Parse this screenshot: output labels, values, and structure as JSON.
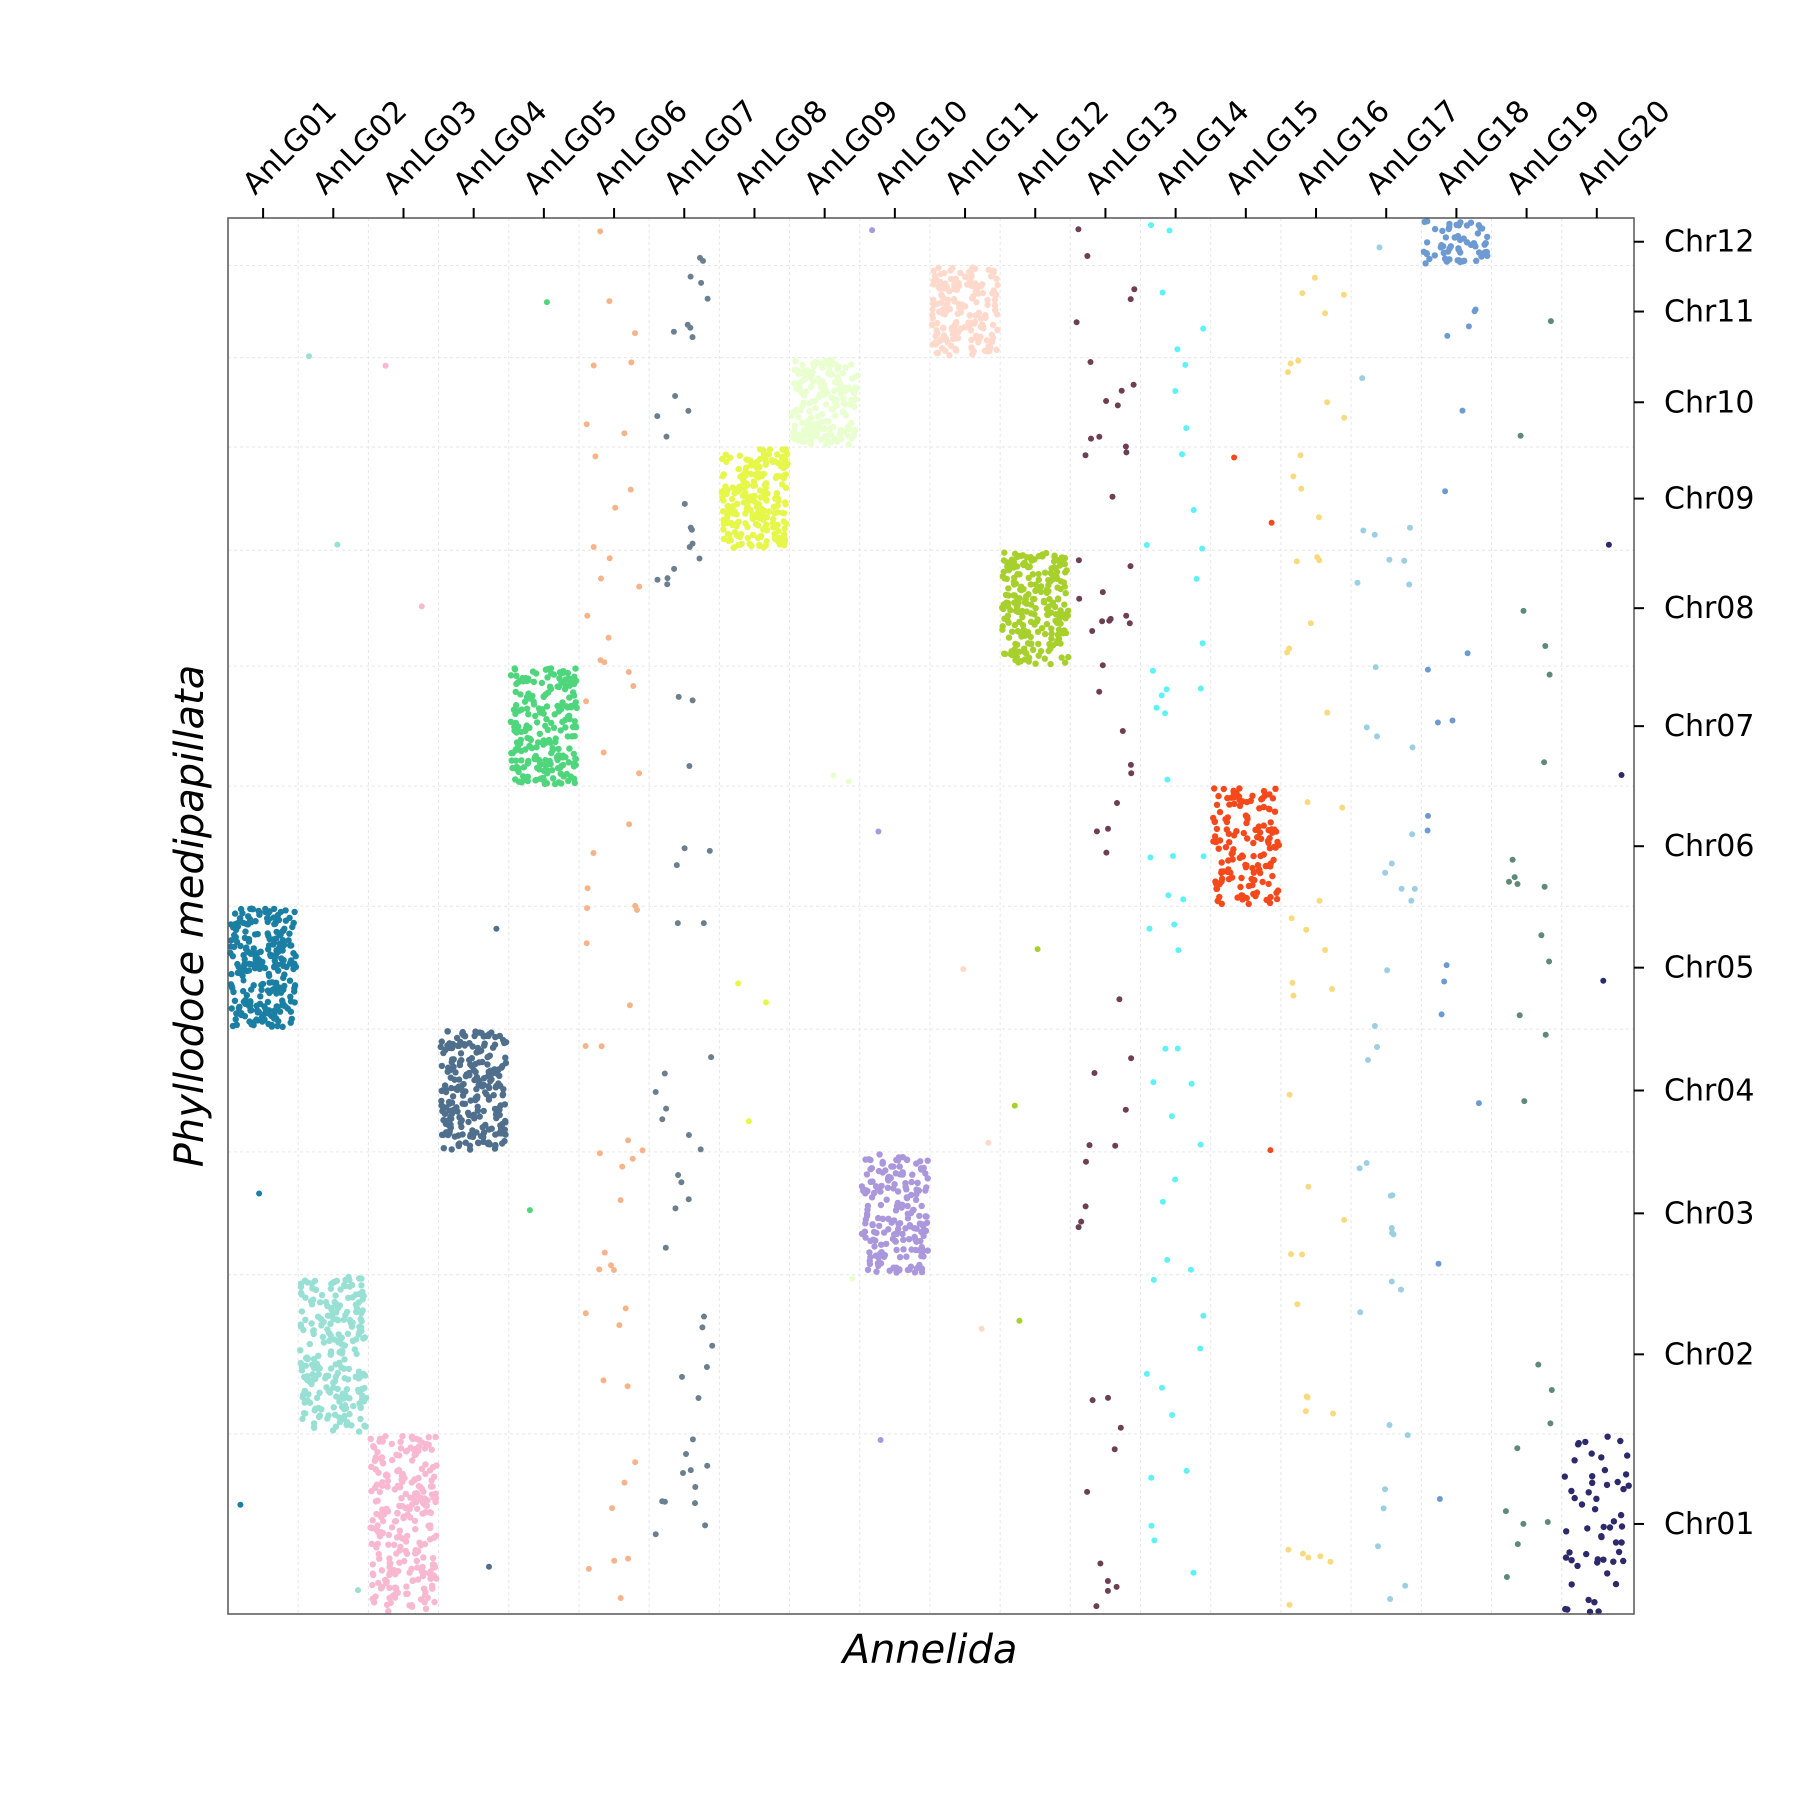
{
  "chart_data": {
    "type": "scatter",
    "title": "",
    "xlabel": "Annelida",
    "ylabel": "Phyllodoce medipapillata",
    "x_categories": [
      "AnLG01",
      "AnLG02",
      "AnLG03",
      "AnLG04",
      "AnLG05",
      "AnLG06",
      "AnLG07",
      "AnLG08",
      "AnLG09",
      "AnLG10",
      "AnLG11",
      "AnLG12",
      "AnLG13",
      "AnLG14",
      "AnLG15",
      "AnLG16",
      "AnLG17",
      "AnLG18",
      "AnLG19",
      "AnLG20"
    ],
    "y_categories": [
      "Chr01",
      "Chr02",
      "Chr03",
      "Chr04",
      "Chr05",
      "Chr06",
      "Chr07",
      "Chr08",
      "Chr09",
      "Chr10",
      "Chr11",
      "Chr12"
    ],
    "x_axis_position": "top",
    "y_axis_position": "right",
    "grid": true,
    "legend": "none",
    "colors": {
      "AnLG01": "#1a7fa3",
      "AnLG02": "#98e0d4",
      "AnLG03": "#f8b8d0",
      "AnLG04": "#4f6f8c",
      "AnLG05": "#4fd67c",
      "AnLG06": "#f7b48a",
      "AnLG07": "#6c7f8f",
      "AnLG08": "#e6f74a",
      "AnLG09": "#eaffd0",
      "AnLG10": "#ab97dc",
      "AnLG11": "#ffd9cc",
      "AnLG12": "#a8d02c",
      "AnLG13": "#6e3f52",
      "AnLG14": "#5ef1f6",
      "AnLG15": "#f5491c",
      "AnLG16": "#f9da7e",
      "AnLG17": "#9ccfe2",
      "AnLG18": "#6d9bd1",
      "AnLG19": "#5f8a7a",
      "AnLG20": "#2d2a6b"
    },
    "blocks": [
      {
        "x": "AnLG01",
        "y": "Chr05",
        "points": 260
      },
      {
        "x": "AnLG02",
        "y": "Chr02",
        "points": 240
      },
      {
        "x": "AnLG03",
        "y": "Chr01",
        "points": 260
      },
      {
        "x": "AnLG04",
        "y": "Chr04",
        "points": 240
      },
      {
        "x": "AnLG05",
        "y": "Chr07",
        "points": 230
      },
      {
        "x": "AnLG08",
        "y": "Chr09",
        "points": 230
      },
      {
        "x": "AnLG09",
        "y": "Chr10",
        "points": 190
      },
      {
        "x": "AnLG10",
        "y": "Chr03",
        "points": 190
      },
      {
        "x": "AnLG11",
        "y": "Chr11",
        "points": 190
      },
      {
        "x": "AnLG12",
        "y": "Chr08",
        "points": 230
      },
      {
        "x": "AnLG15",
        "y": "Chr06",
        "points": 150
      },
      {
        "x": "AnLG18",
        "y": "Chr12",
        "points": 60
      },
      {
        "x": "AnLG20",
        "y": "Chr01",
        "points": 55
      }
    ],
    "scattered": [
      {
        "x": "AnLG06",
        "points": 55
      },
      {
        "x": "AnLG07",
        "points": 60
      },
      {
        "x": "AnLG13",
        "points": 55
      },
      {
        "x": "AnLG14",
        "points": 50
      },
      {
        "x": "AnLG16",
        "points": 45
      },
      {
        "x": "AnLG17",
        "points": 40
      },
      {
        "x": "AnLG18",
        "points": 18
      },
      {
        "x": "AnLG19",
        "points": 25
      }
    ]
  }
}
